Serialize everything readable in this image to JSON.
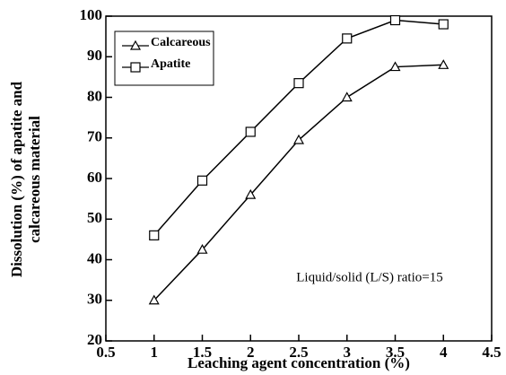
{
  "chart_data": {
    "type": "line",
    "xlabel": "Leaching agent concentration (%)",
    "ylabel": [
      "Dissolution (%) of apatite and",
      "calcareous material"
    ],
    "annotation": "Liquid/solid (L/S) ratio=15",
    "x": [
      1,
      1.5,
      2,
      2.5,
      3,
      3.5,
      4
    ],
    "series": [
      {
        "name": "Calcareous",
        "color": "#000000",
        "marker": "triangle",
        "values": [
          30,
          42.5,
          56,
          69.5,
          80,
          87.5,
          88
        ]
      },
      {
        "name": "Apatite",
        "color": "#000000",
        "marker": "square",
        "values": [
          46,
          59.5,
          71.5,
          83.5,
          94.5,
          99,
          98
        ]
      }
    ],
    "xlim": [
      0.5,
      4.5
    ],
    "xticks": [
      0.5,
      1,
      1.5,
      2,
      2.5,
      3,
      3.5,
      4,
      4.5
    ],
    "ylim": [
      20,
      100
    ],
    "yticks": [
      20,
      30,
      40,
      50,
      60,
      70,
      80,
      90,
      100
    ],
    "legend": "upper left"
  }
}
